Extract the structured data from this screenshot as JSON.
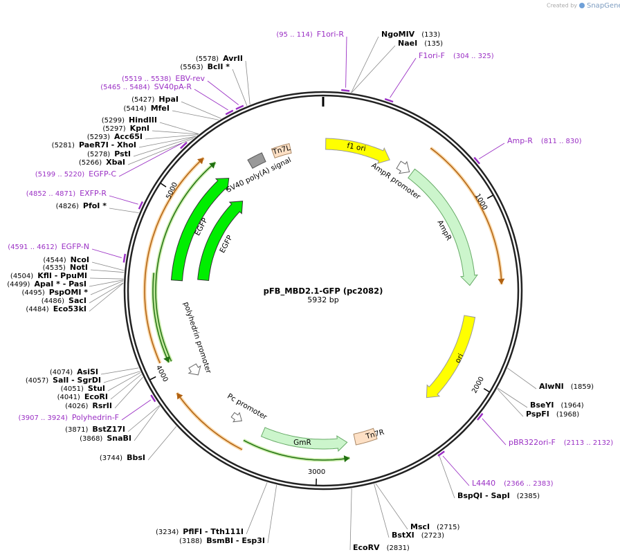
{
  "header": {
    "created_by": "Created by",
    "brand": "SnapGene"
  },
  "plasmid": {
    "name": "pFB_MBD2.1-GFP (pc2082)",
    "length": {
      "value": 5932,
      "label": "5932 bp"
    }
  },
  "ticks": [
    1000,
    2000,
    3000,
    4000,
    5000
  ],
  "features": [
    {
      "label": "f1 ori"
    },
    {
      "label": "AmpR promoter"
    },
    {
      "label": "AmpR"
    },
    {
      "label": "ori"
    },
    {
      "label": "Tn7R"
    },
    {
      "label": "GmR"
    },
    {
      "label": "Pc promoter"
    },
    {
      "label": "polyhedrin promoter"
    },
    {
      "label": "EGFP"
    },
    {
      "label": "EGFP"
    },
    {
      "label": "SV40 poly(A) signal"
    },
    {
      "label": "Tn7L"
    }
  ],
  "sites": [
    {
      "name": "NgoMIV",
      "position": {
        "value": 133,
        "label": "(133)"
      }
    },
    {
      "name": "NaeI",
      "position": {
        "value": 135,
        "label": "(135)"
      }
    },
    {
      "name": "AlwNI",
      "position": {
        "value": 1859,
        "label": "(1859)"
      }
    },
    {
      "name": "BseYI",
      "position": {
        "value": 1964,
        "label": "(1964)"
      }
    },
    {
      "name": "PspFI",
      "position": {
        "value": 1968,
        "label": "(1968)"
      }
    },
    {
      "name": "BspQI - SapI",
      "position": {
        "value": 2385,
        "label": "(2385)"
      }
    },
    {
      "name": "MscI",
      "position": {
        "value": 2715,
        "label": "(2715)"
      }
    },
    {
      "name": "BstXI",
      "position": {
        "value": 2723,
        "label": "(2723)"
      }
    },
    {
      "name": "EcoRV",
      "position": {
        "value": 2831,
        "label": "(2831)"
      }
    },
    {
      "name": "BsmBI - Esp3I",
      "position": {
        "value": 3188,
        "label": "(3188)"
      }
    },
    {
      "name": "PflFI - Tth111I",
      "position": {
        "value": 3234,
        "label": "(3234)"
      }
    },
    {
      "name": "BbsI",
      "position": {
        "value": 3744,
        "label": "(3744)"
      }
    },
    {
      "name": "SnaBI",
      "position": {
        "value": 3868,
        "label": "(3868)"
      }
    },
    {
      "name": "BstZ17I",
      "position": {
        "value": 3871,
        "label": "(3871)"
      }
    },
    {
      "name": "RsrII",
      "position": {
        "value": 4026,
        "label": "(4026)"
      }
    },
    {
      "name": "EcoRI",
      "position": {
        "value": 4041,
        "label": "(4041)"
      }
    },
    {
      "name": "StuI",
      "position": {
        "value": 4051,
        "label": "(4051)"
      }
    },
    {
      "name": "SalI - SgrDI",
      "position": {
        "value": 4057,
        "label": "(4057)"
      }
    },
    {
      "name": "AsiSI",
      "position": {
        "value": 4074,
        "label": "(4074)"
      }
    },
    {
      "name": "Eco53kI",
      "position": {
        "value": 4484,
        "label": "(4484)"
      }
    },
    {
      "name": "SacI",
      "position": {
        "value": 4486,
        "label": "(4486)"
      }
    },
    {
      "name": "PspOMI *",
      "position": {
        "value": 4495,
        "label": "(4495)"
      }
    },
    {
      "name": "ApaI * - PasI",
      "position": {
        "value": 4499,
        "label": "(4499)"
      }
    },
    {
      "name": "KflI - PpuMI",
      "position": {
        "value": 4504,
        "label": "(4504)"
      }
    },
    {
      "name": "NotI",
      "position": {
        "value": 4535,
        "label": "(4535)"
      }
    },
    {
      "name": "NcoI",
      "position": {
        "value": 4544,
        "label": "(4544)"
      }
    },
    {
      "name": "PfoI *",
      "position": {
        "value": 4826,
        "label": "(4826)"
      }
    },
    {
      "name": "XbaI",
      "position": {
        "value": 5266,
        "label": "(5266)"
      }
    },
    {
      "name": "PstI",
      "position": {
        "value": 5278,
        "label": "(5278)"
      }
    },
    {
      "name": "PaeR7I - XhoI",
      "position": {
        "value": 5281,
        "label": "(5281)"
      }
    },
    {
      "name": "Acc65I",
      "position": {
        "value": 5293,
        "label": "(5293)"
      }
    },
    {
      "name": "KpnI",
      "position": {
        "value": 5297,
        "label": "(5297)"
      }
    },
    {
      "name": "HindIII",
      "position": {
        "value": 5299,
        "label": "(5299)"
      }
    },
    {
      "name": "MfeI",
      "position": {
        "value": 5414,
        "label": "(5414)"
      }
    },
    {
      "name": "HpaI",
      "position": {
        "value": 5427,
        "label": "(5427)"
      }
    },
    {
      "name": "BclI *",
      "position": {
        "value": 5563,
        "label": "(5563)"
      }
    },
    {
      "name": "AvrII",
      "position": {
        "value": 5578,
        "label": "(5578)"
      }
    }
  ],
  "primers": [
    {
      "name": "F1ori-R",
      "start": 95,
      "end": 114,
      "range": "(95 .. 114)"
    },
    {
      "name": "F1ori-F",
      "start": 304,
      "end": 325,
      "range": "(304 .. 325)"
    },
    {
      "name": "Amp-R",
      "start": 811,
      "end": 830,
      "range": "(811 .. 830)"
    },
    {
      "name": "pBR322ori-F",
      "start": 2113,
      "end": 2132,
      "range": "(2113 .. 2132)"
    },
    {
      "name": "L4440",
      "start": 2366,
      "end": 2383,
      "range": "(2366 .. 2383)"
    },
    {
      "name": "Polyhedrin-F",
      "start": 3907,
      "end": 3924,
      "range": "(3907 .. 3924)"
    },
    {
      "name": "EGFP-N",
      "start": 4591,
      "end": 4612,
      "range": "(4591 .. 4612)"
    },
    {
      "name": "EXFP-R",
      "start": 4852,
      "end": 4871,
      "range": "(4852 .. 4871)"
    },
    {
      "name": "EGFP-C",
      "start": 5199,
      "end": 5220,
      "range": "(5199 .. 5220)"
    },
    {
      "name": "SV40pA-R",
      "start": 5465,
      "end": 5484,
      "range": "(5465 .. 5484)"
    },
    {
      "name": "EBV-rev",
      "start": 5519,
      "end": 5538,
      "range": "(5519 .. 5538)"
    }
  ]
}
